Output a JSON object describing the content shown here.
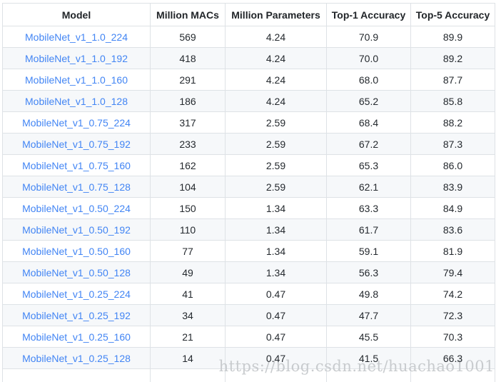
{
  "table": {
    "columns": [
      {
        "key": "model",
        "label": "Model"
      },
      {
        "key": "macs",
        "label": "Million MACs"
      },
      {
        "key": "params",
        "label": "Million Parameters"
      },
      {
        "key": "top1",
        "label": "Top-1 Accuracy"
      },
      {
        "key": "top5",
        "label": "Top-5 Accuracy"
      }
    ],
    "rows": [
      {
        "model": "MobileNet_v1_1.0_224",
        "macs": "569",
        "params": "4.24",
        "top1": "70.9",
        "top5": "89.9"
      },
      {
        "model": "MobileNet_v1_1.0_192",
        "macs": "418",
        "params": "4.24",
        "top1": "70.0",
        "top5": "89.2"
      },
      {
        "model": "MobileNet_v1_1.0_160",
        "macs": "291",
        "params": "4.24",
        "top1": "68.0",
        "top5": "87.7"
      },
      {
        "model": "MobileNet_v1_1.0_128",
        "macs": "186",
        "params": "4.24",
        "top1": "65.2",
        "top5": "85.8"
      },
      {
        "model": "MobileNet_v1_0.75_224",
        "macs": "317",
        "params": "2.59",
        "top1": "68.4",
        "top5": "88.2"
      },
      {
        "model": "MobileNet_v1_0.75_192",
        "macs": "233",
        "params": "2.59",
        "top1": "67.2",
        "top5": "87.3"
      },
      {
        "model": "MobileNet_v1_0.75_160",
        "macs": "162",
        "params": "2.59",
        "top1": "65.3",
        "top5": "86.0"
      },
      {
        "model": "MobileNet_v1_0.75_128",
        "macs": "104",
        "params": "2.59",
        "top1": "62.1",
        "top5": "83.9"
      },
      {
        "model": "MobileNet_v1_0.50_224",
        "macs": "150",
        "params": "1.34",
        "top1": "63.3",
        "top5": "84.9"
      },
      {
        "model": "MobileNet_v1_0.50_192",
        "macs": "110",
        "params": "1.34",
        "top1": "61.7",
        "top5": "83.6"
      },
      {
        "model": "MobileNet_v1_0.50_160",
        "macs": "77",
        "params": "1.34",
        "top1": "59.1",
        "top5": "81.9"
      },
      {
        "model": "MobileNet_v1_0.50_128",
        "macs": "49",
        "params": "1.34",
        "top1": "56.3",
        "top5": "79.4"
      },
      {
        "model": "MobileNet_v1_0.25_224",
        "macs": "41",
        "params": "0.47",
        "top1": "49.8",
        "top5": "74.2"
      },
      {
        "model": "MobileNet_v1_0.25_192",
        "macs": "34",
        "params": "0.47",
        "top1": "47.7",
        "top5": "72.3"
      },
      {
        "model": "MobileNet_v1_0.25_160",
        "macs": "21",
        "params": "0.47",
        "top1": "45.5",
        "top5": "70.3"
      },
      {
        "model": "MobileNet_v1_0.25_128",
        "macs": "14",
        "params": "0.47",
        "top1": "41.5",
        "top5": "66.3"
      }
    ]
  },
  "watermark": {
    "text": "https://blog.csdn.net/huachao1001"
  },
  "colors": {
    "link": "#4285f4",
    "stripe": "#f6f8fa",
    "border": "#dee2e6",
    "header_text": "#212529",
    "cell_text": "#24292e",
    "watermark": "#c8cbce"
  }
}
